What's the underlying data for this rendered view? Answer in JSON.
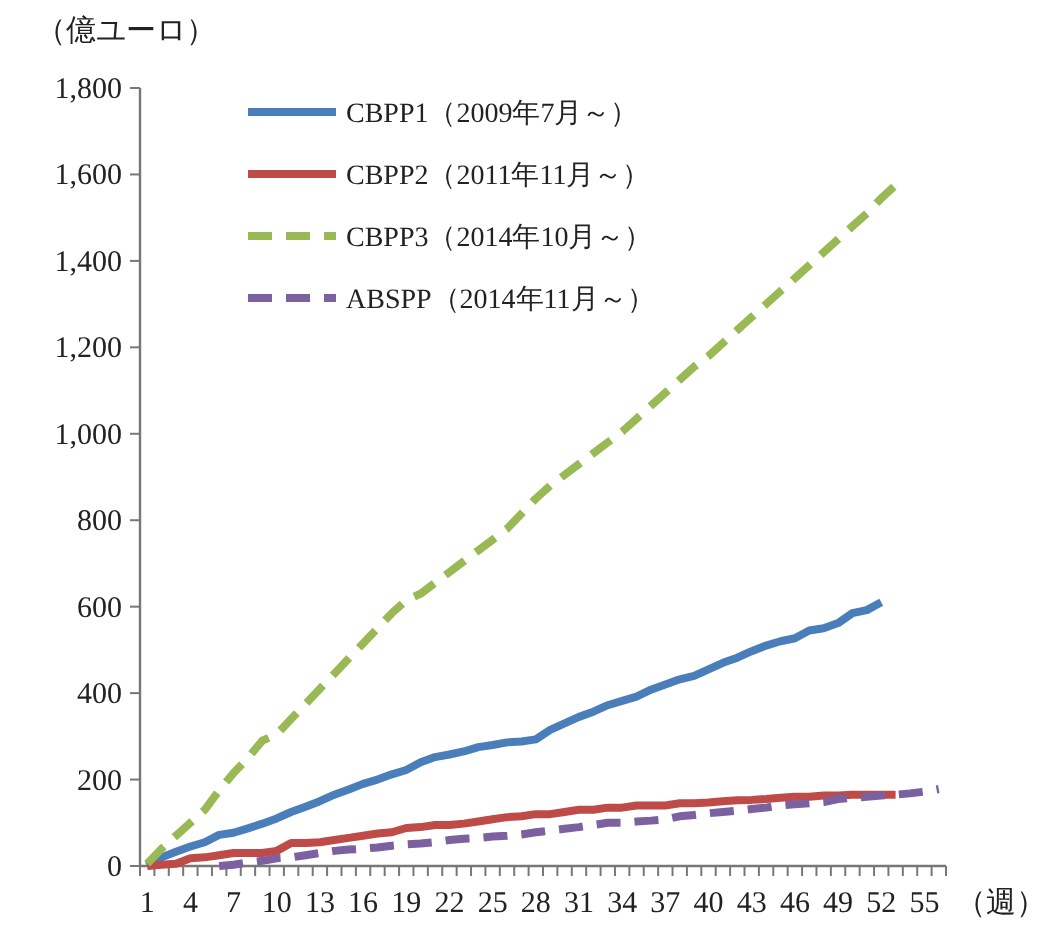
{
  "chart_data": {
    "type": "line",
    "ylabel": "（億ユーロ）",
    "xlabel": "（週）",
    "categories": [
      "1",
      null,
      null,
      "4",
      null,
      null,
      "7",
      null,
      null,
      "10",
      null,
      null,
      "13",
      null,
      null,
      "16",
      null,
      null,
      "19",
      null,
      null,
      "22",
      null,
      null,
      "25",
      null,
      null,
      "28",
      null,
      null,
      "31",
      null,
      null,
      "34",
      null,
      null,
      "37",
      null,
      null,
      "40",
      null,
      null,
      "43",
      null,
      null,
      "46",
      null,
      null,
      "49",
      null,
      null,
      "52",
      null,
      null,
      "55",
      null
    ],
    "ylim": [
      0,
      1800
    ],
    "yticks": [
      0,
      200,
      400,
      600,
      800,
      {
        "value": 1000,
        "label": "1,000"
      },
      {
        "value": 1200,
        "label": "1,200"
      },
      {
        "value": 1400,
        "label": "1,400"
      },
      {
        "value": 1600,
        "label": "1,600"
      },
      {
        "value": 1800,
        "label": "1,800"
      }
    ],
    "grid": false,
    "legend": "top left",
    "marker": "none",
    "series": [
      {
        "name": "CBPP1（2009年7月～）",
        "color": "#4a7ebb",
        "line_style": "solid",
        "values": [
          0,
          20,
          33,
          45,
          55,
          72,
          77,
          87,
          98,
          110,
          125,
          137,
          150,
          165,
          177,
          190,
          200,
          212,
          222,
          240,
          252,
          258,
          265,
          275,
          280,
          286,
          288,
          293,
          315,
          330,
          345,
          357,
          372,
          382,
          392,
          408,
          420,
          432,
          440,
          455,
          470,
          482,
          497,
          510,
          520,
          527,
          545,
          550,
          562,
          585,
          592,
          610,
          null,
          null,
          null,
          null
        ]
      },
      {
        "name": "CBPP2（2011年11月～）",
        "color": "#be4b48",
        "line_style": "solid",
        "values": [
          0,
          3,
          5,
          18,
          20,
          25,
          30,
          30,
          30,
          35,
          53,
          53,
          55,
          60,
          65,
          70,
          75,
          78,
          88,
          90,
          95,
          95,
          98,
          103,
          108,
          113,
          115,
          120,
          120,
          125,
          130,
          130,
          135,
          135,
          140,
          140,
          140,
          145,
          145,
          147,
          150,
          152,
          153,
          155,
          158,
          160,
          160,
          163,
          163,
          165,
          165,
          165,
          165,
          null,
          null,
          null
        ]
      },
      {
        "name": "CBPP3（2014年10月～）",
        "color": "#98b954",
        "line_style": "dashed",
        "values": [
          5,
          40,
          70,
          100,
          130,
          175,
          215,
          250,
          290,
          305,
          340,
          375,
          410,
          445,
          480,
          515,
          550,
          585,
          615,
          630,
          655,
          680,
          705,
          730,
          755,
          780,
          815,
          850,
          880,
          905,
          930,
          955,
          980,
          1005,
          1035,
          1065,
          1095,
          1125,
          1155,
          1180,
          1210,
          1240,
          1270,
          1300,
          1330,
          1360,
          1390,
          1420,
          1450,
          1480,
          1510,
          1545,
          1575,
          null,
          null,
          null
        ]
      },
      {
        "name": "ABSPP（2014年11月～）",
        "color": "#7d60a0",
        "line_style": "dashed",
        "values": [
          null,
          null,
          null,
          null,
          null,
          0,
          3,
          8,
          12,
          18,
          20,
          25,
          30,
          35,
          38,
          40,
          43,
          47,
          50,
          52,
          55,
          60,
          63,
          65,
          68,
          70,
          73,
          78,
          82,
          86,
          90,
          95,
          100,
          100,
          103,
          105,
          108,
          115,
          118,
          122,
          125,
          128,
          132,
          135,
          140,
          143,
          145,
          148,
          155,
          158,
          160,
          163,
          165,
          168,
          172,
          178
        ]
      }
    ]
  }
}
